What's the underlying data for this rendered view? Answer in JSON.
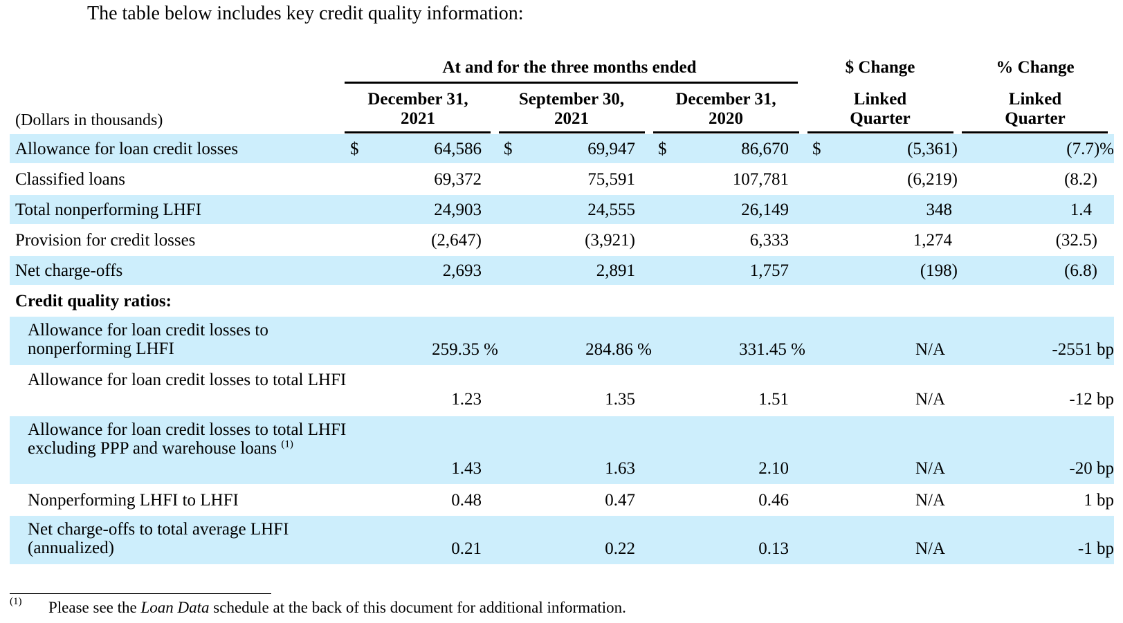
{
  "intro": "The table below includes key credit quality information:",
  "header": {
    "group_title": "At and for the three months ended",
    "dollars_label": "(Dollars in thousands)",
    "dollar_change_title": "$ Change",
    "pct_change_title": "% Change",
    "col1": [
      "December 31,",
      "2021"
    ],
    "col2": [
      "September 30,",
      "2021"
    ],
    "col3": [
      "December 31,",
      "2020"
    ],
    "col4": [
      "Linked",
      "Quarter"
    ],
    "col5": [
      "Linked",
      "Quarter"
    ]
  },
  "rows": [
    {
      "label": "Allowance for loan credit losses",
      "dollar": "$",
      "c1": "64,586",
      "c2": "69,947",
      "c3": "86,670",
      "c4": "(5,361)",
      "c5": "(7.7)%"
    },
    {
      "label": "Classified loans",
      "c1": "69,372",
      "c2": "75,591",
      "c3": "107,781",
      "c4": "(6,219)",
      "c5": "(8.2)"
    },
    {
      "label": "Total nonperforming LHFI",
      "c1": "24,903",
      "c2": "24,555",
      "c3": "26,149",
      "c4": "348",
      "c5": "1.4"
    },
    {
      "label": "Provision for credit losses",
      "c1": "(2,647)",
      "c2": "(3,921)",
      "c3": "6,333",
      "c4": "1,274",
      "c5": "(32.5)"
    },
    {
      "label": "Net charge-offs",
      "c1": "2,693",
      "c2": "2,891",
      "c3": "1,757",
      "c4": "(198)",
      "c5": "(6.8)"
    }
  ],
  "ratios_heading": "Credit quality ratios:",
  "ratios": [
    {
      "label": "Allowance for loan credit losses to nonperforming LHFI",
      "c1": "259.35 %",
      "c2": "284.86 %",
      "c3": "331.45 %",
      "c4": "N/A",
      "c5": "-2551 bp"
    },
    {
      "label": "Allowance for loan credit losses to total LHFI",
      "c1": "1.23",
      "c2": "1.35",
      "c3": "1.51",
      "c4": "N/A",
      "c5": "-12 bp"
    },
    {
      "label": "Allowance for loan credit losses to total LHFI excluding PPP and warehouse loans",
      "sup": "(1)",
      "c1": "1.43",
      "c2": "1.63",
      "c3": "2.10",
      "c4": "N/A",
      "c5": "-20 bp"
    },
    {
      "label": "Nonperforming LHFI to LHFI",
      "c1": "0.48",
      "c2": "0.47",
      "c3": "0.46",
      "c4": "N/A",
      "c5": "1 bp"
    },
    {
      "label": "Net charge-offs to total average LHFI (annualized)",
      "c1": "0.21",
      "c2": "0.22",
      "c3": "0.13",
      "c4": "N/A",
      "c5": "-1 bp"
    }
  ],
  "footnote": {
    "mark": "(1)",
    "text_before": "Please see the ",
    "text_italic": "Loan Data",
    "text_after": " schedule at the back of this document for additional information."
  }
}
